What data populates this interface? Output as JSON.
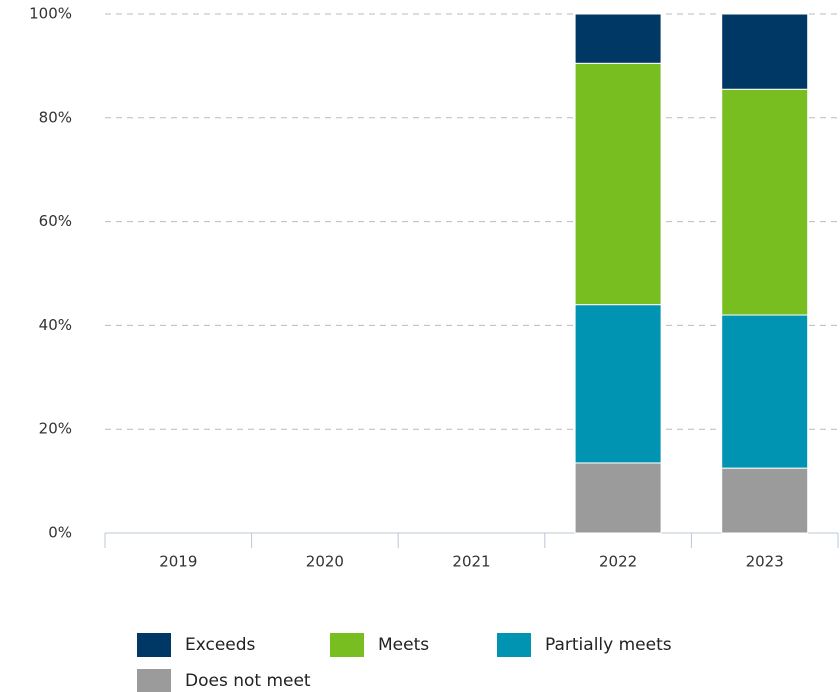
{
  "chart_data": {
    "type": "stacked_bar",
    "categories": [
      "2019",
      "2020",
      "2021",
      "2022",
      "2023"
    ],
    "series": [
      {
        "name": "Exceeds",
        "color": "#003865",
        "values": [
          null,
          null,
          null,
          9.5,
          14.5
        ]
      },
      {
        "name": "Meets",
        "color": "#78be20",
        "values": [
          null,
          null,
          null,
          46.5,
          43.5
        ]
      },
      {
        "name": "Partially meets",
        "color": "#0093b2",
        "values": [
          null,
          null,
          null,
          30.5,
          29.5
        ]
      },
      {
        "name": "Does not meet",
        "color": "#9b9b9b",
        "values": [
          null,
          null,
          null,
          13.5,
          12.5
        ]
      }
    ],
    "ylim": [
      0,
      100
    ],
    "yticks": [
      {
        "value": 0,
        "label": "0%"
      },
      {
        "value": 20,
        "label": "20%"
      },
      {
        "value": 40,
        "label": "40%"
      },
      {
        "value": 60,
        "label": "60%"
      },
      {
        "value": 80,
        "label": "80%"
      },
      {
        "value": 100,
        "label": "100%"
      }
    ],
    "grid": true
  }
}
